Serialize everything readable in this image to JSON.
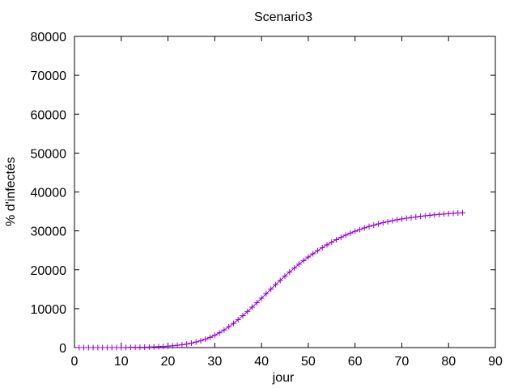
{
  "chart_data": {
    "type": "line",
    "title": "Scenario3",
    "xlabel": "jour",
    "ylabel": "% d'infectés",
    "xlim": [
      0,
      90
    ],
    "ylim": [
      0,
      80000
    ],
    "xticks": [
      0,
      10,
      20,
      30,
      40,
      50,
      60,
      70,
      80,
      90
    ],
    "yticks": [
      0,
      10000,
      20000,
      30000,
      40000,
      50000,
      60000,
      70000,
      80000
    ],
    "grid": false,
    "legend": "none",
    "marker": "plus",
    "color": "#9400d3",
    "series": [
      {
        "x": [
          1,
          2,
          3,
          4,
          5,
          6,
          7,
          8,
          9,
          10,
          11,
          12,
          13,
          14,
          15,
          16,
          17,
          18,
          19,
          20,
          21,
          22,
          23,
          24,
          25,
          26,
          27,
          28,
          29,
          30,
          31,
          32,
          33,
          34,
          35,
          36,
          37,
          38,
          39,
          40,
          41,
          42,
          43,
          44,
          45,
          46,
          47,
          48,
          49,
          50,
          51,
          52,
          53,
          54,
          55,
          56,
          57,
          58,
          59,
          60,
          61,
          62,
          63,
          64,
          65,
          66,
          67,
          68,
          69,
          70,
          71,
          72,
          73,
          74,
          75,
          76,
          77,
          78,
          79,
          80,
          81,
          82,
          83
        ],
        "values": [
          0,
          0,
          0,
          0,
          0,
          0,
          0,
          0,
          0,
          0,
          20,
          40,
          60,
          80,
          110,
          140,
          180,
          230,
          290,
          370,
          470,
          590,
          740,
          920,
          1150,
          1420,
          1750,
          2150,
          2620,
          3170,
          3800,
          4520,
          5330,
          6220,
          7180,
          8200,
          9270,
          10380,
          11520,
          12680,
          13850,
          15010,
          16150,
          17270,
          18360,
          19420,
          20440,
          21420,
          22360,
          23260,
          24110,
          24920,
          25690,
          26420,
          27100,
          27740,
          28340,
          28900,
          29420,
          29900,
          30340,
          30750,
          31130,
          31480,
          31800,
          32100,
          32370,
          32620,
          32850,
          33060,
          33250,
          33430,
          33590,
          33740,
          33880,
          34010,
          34130,
          34240,
          34340,
          34430,
          34510,
          34590,
          34660
        ]
      }
    ]
  }
}
